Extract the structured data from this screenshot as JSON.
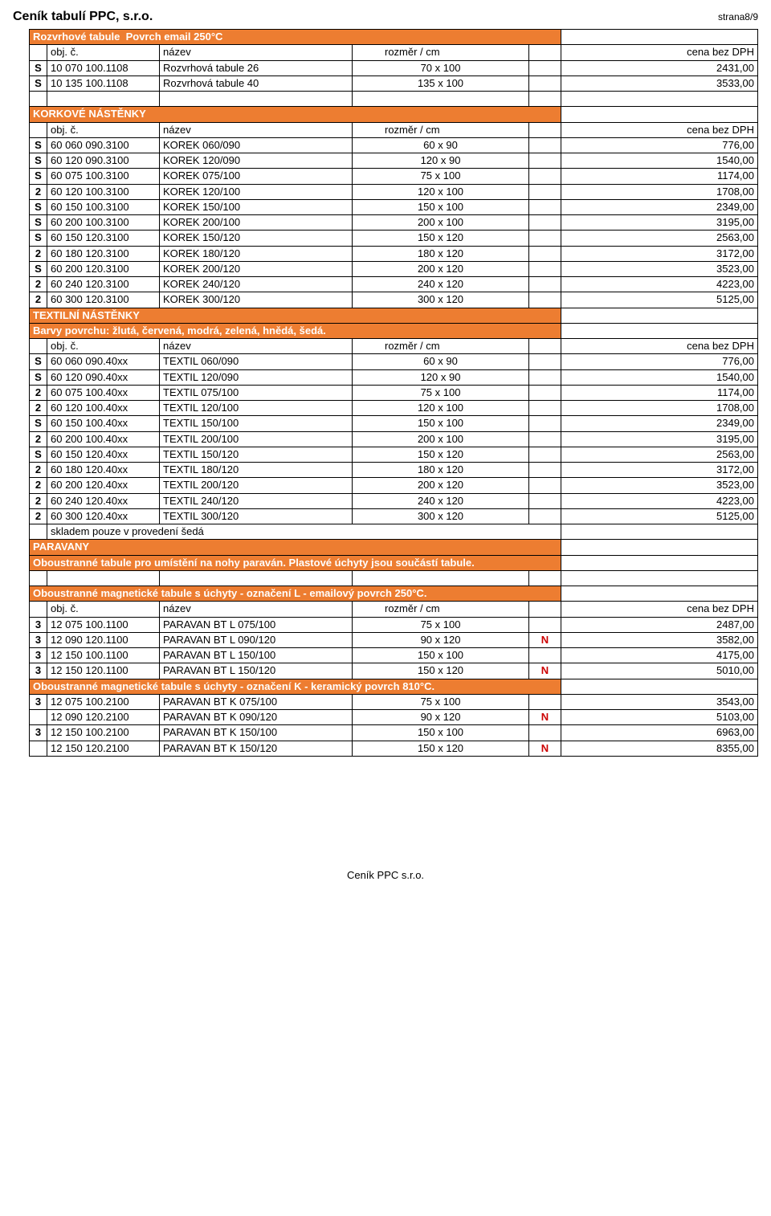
{
  "doc": {
    "title": "Ceník tabulí PPC, s.r.o.",
    "page": "strana8/9",
    "footer": "Ceník PPC s.r.o."
  },
  "labels": {
    "obj": "obj. č.",
    "nazev": "název",
    "rozmer": "rozměr / cm",
    "cena": "cena bez DPH"
  },
  "sections": [
    {
      "title": "Rozvrhové tabule",
      "subtitle": "Povrch email 250°C",
      "rows": [
        {
          "f": "S",
          "code": "10 070 100.1108",
          "name": "Rozvrhová tabule 26",
          "size": "70 x 100",
          "n": "",
          "price": "2431,00"
        },
        {
          "f": "S",
          "code": "10 135 100.1108",
          "name": "Rozvrhová tabule 40",
          "size": "135 x 100",
          "n": "",
          "price": "3533,00"
        }
      ]
    },
    {
      "title": "KORKOVÉ NÁSTĚNKY",
      "rows": [
        {
          "f": "S",
          "code": "60 060 090.3100",
          "name": "KOREK 060/090",
          "size": "60 x 90",
          "n": "",
          "price": "776,00"
        },
        {
          "f": "S",
          "code": "60 120 090.3100",
          "name": "KOREK 120/090",
          "size": "120 x 90",
          "n": "",
          "price": "1540,00"
        },
        {
          "f": "S",
          "code": "60 075 100.3100",
          "name": "KOREK 075/100",
          "size": "75 x 100",
          "n": "",
          "price": "1174,00"
        },
        {
          "f": "2",
          "code": "60 120 100.3100",
          "name": "KOREK 120/100",
          "size": "120 x 100",
          "n": "",
          "price": "1708,00"
        },
        {
          "f": "S",
          "code": "60 150 100.3100",
          "name": "KOREK 150/100",
          "size": "150 x 100",
          "n": "",
          "price": "2349,00"
        },
        {
          "f": "S",
          "code": "60 200 100.3100",
          "name": "KOREK 200/100",
          "size": "200 x 100",
          "n": "",
          "price": "3195,00"
        },
        {
          "f": "S",
          "code": "60 150 120.3100",
          "name": "KOREK 150/120",
          "size": "150 x 120",
          "n": "",
          "price": "2563,00"
        },
        {
          "f": "2",
          "code": "60 180 120.3100",
          "name": "KOREK 180/120",
          "size": "180 x 120",
          "n": "",
          "price": "3172,00"
        },
        {
          "f": "S",
          "code": "60 200 120.3100",
          "name": "KOREK 200/120",
          "size": "200 x 120",
          "n": "",
          "price": "3523,00"
        },
        {
          "f": "2",
          "code": "60 240 120.3100",
          "name": "KOREK 240/120",
          "size": "240 x 120",
          "n": "",
          "price": "4223,00"
        },
        {
          "f": "2",
          "code": "60 300 120.3100",
          "name": "KOREK 300/120",
          "size": "300 x 120",
          "n": "",
          "price": "5125,00"
        }
      ]
    },
    {
      "title": "TEXTILNÍ NÁSTĚNKY",
      "note": "Barvy povrchu: žlutá, červená, modrá, zelená, hnědá, šedá.",
      "rows": [
        {
          "f": "S",
          "code": "60 060 090.40xx",
          "name": "TEXTIL 060/090",
          "size": "60 x 90",
          "n": "",
          "price": "776,00"
        },
        {
          "f": "S",
          "code": "60 120 090.40xx",
          "name": "TEXTIL 120/090",
          "size": "120 x 90",
          "n": "",
          "price": "1540,00"
        },
        {
          "f": "2",
          "code": "60 075 100.40xx",
          "name": "TEXTIL 075/100",
          "size": "75 x 100",
          "n": "",
          "price": "1174,00"
        },
        {
          "f": "2",
          "code": "60 120 100.40xx",
          "name": "TEXTIL 120/100",
          "size": "120 x 100",
          "n": "",
          "price": "1708,00"
        },
        {
          "f": "S",
          "code": "60 150 100.40xx",
          "name": "TEXTIL 150/100",
          "size": "150 x 100",
          "n": "",
          "price": "2349,00"
        },
        {
          "f": "2",
          "code": "60 200 100.40xx",
          "name": "TEXTIL 200/100",
          "size": "200 x 100",
          "n": "",
          "price": "3195,00"
        },
        {
          "f": "S",
          "code": "60 150 120.40xx",
          "name": "TEXTIL 150/120",
          "size": "150 x 120",
          "n": "",
          "price": "2563,00"
        },
        {
          "f": "2",
          "code": "60 180 120.40xx",
          "name": "TEXTIL 180/120",
          "size": "180 x 120",
          "n": "",
          "price": "3172,00"
        },
        {
          "f": "2",
          "code": "60 200 120.40xx",
          "name": "TEXTIL 200/120",
          "size": "200 x 120",
          "n": "",
          "price": "3523,00"
        },
        {
          "f": "2",
          "code": "60 240 120.40xx",
          "name": "TEXTIL 240/120",
          "size": "240 x 120",
          "n": "",
          "price": "4223,00"
        },
        {
          "f": "2",
          "code": "60 300 120.40xx",
          "name": "TEXTIL 300/120",
          "size": "300 x 120",
          "n": "",
          "price": "5125,00"
        }
      ],
      "trailing_note": "skladem pouze v provedení šedá"
    },
    {
      "title": "PARAVANY",
      "note": "Oboustranné tabule pro umístění na nohy paraván. Plastové úchyty jsou součástí tabule.",
      "subhead": "Oboustranné magnetické tabule s úchyty - označení L - emailový povrch 250°C.",
      "rows": [
        {
          "f": "3",
          "code": "12 075 100.1100",
          "name": "PARAVAN BT L 075/100",
          "size": "75 x 100",
          "n": "",
          "price": "2487,00"
        },
        {
          "f": "3",
          "code": "12 090 120.1100",
          "name": "PARAVAN BT L 090/120",
          "size": "90 x 120",
          "n": "N",
          "price": "3582,00"
        },
        {
          "f": "3",
          "code": "12 150 100.1100",
          "name": "PARAVAN BT L 150/100",
          "size": "150 x 100",
          "n": "",
          "price": "4175,00"
        },
        {
          "f": "3",
          "code": "12 150 120.1100",
          "name": "PARAVAN BT L 150/120",
          "size": "150 x 120",
          "n": "N",
          "price": "5010,00"
        }
      ],
      "subhead2": "Oboustranné magnetické tabule s úchyty - označení K - keramický povrch 810°C.",
      "rows2": [
        {
          "f": "3",
          "code": "12 075 100.2100",
          "name": "PARAVAN BT K 075/100",
          "size": "75 x 100",
          "n": "",
          "price": "3543,00"
        },
        {
          "f": "",
          "code": "12 090 120.2100",
          "name": "PARAVAN BT K 090/120",
          "size": "90 x 120",
          "n": "N",
          "price": "5103,00"
        },
        {
          "f": "3",
          "code": "12 150 100.2100",
          "name": "PARAVAN BT K 150/100",
          "size": "150 x 100",
          "n": "",
          "price": "6963,00"
        },
        {
          "f": "",
          "code": "12 150 120.2100",
          "name": "PARAVAN BT K 150/120",
          "size": "150 x 120",
          "n": "N",
          "price": "8355,00"
        }
      ]
    }
  ],
  "style": {
    "section_bg": "#ed7d31",
    "section_fg": "#ffffff",
    "border": "#000000",
    "n_color": "#cc0000"
  }
}
